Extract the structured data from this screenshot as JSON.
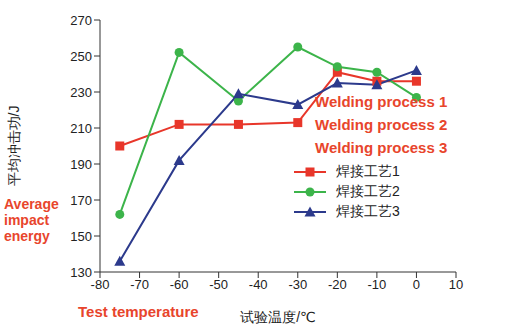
{
  "chart_data": {
    "type": "line",
    "x_label": "试验温度/℃",
    "y_label": "平均冲击功/J",
    "x": [
      -75,
      -60,
      -45,
      -30,
      -20,
      -10,
      0
    ],
    "series": [
      {
        "name": "焊接工艺1",
        "color": "#e8362a",
        "marker": "square",
        "values": [
          200,
          212,
          212,
          213,
          241,
          236,
          236
        ]
      },
      {
        "name": "焊接工艺2",
        "color": "#3cb44a",
        "marker": "circle",
        "values": [
          162,
          252,
          225,
          255,
          244,
          241,
          227
        ]
      },
      {
        "name": "焊接工艺3",
        "color": "#2c3a8c",
        "marker": "triangle",
        "values": [
          136,
          192,
          229,
          223,
          235,
          234,
          242
        ]
      }
    ],
    "xlim": [
      -80,
      10
    ],
    "xticks": [
      -80,
      -70,
      -60,
      -50,
      -40,
      -30,
      -20,
      -10,
      0,
      10
    ],
    "ylim": [
      130,
      270
    ],
    "yticks": [
      130,
      150,
      170,
      190,
      210,
      230,
      250,
      270
    ],
    "grid": false,
    "annotations": [
      "Welding process 1",
      "Welding process 2",
      "Welding process 3",
      "Average impact energy",
      "Test temperature"
    ]
  }
}
